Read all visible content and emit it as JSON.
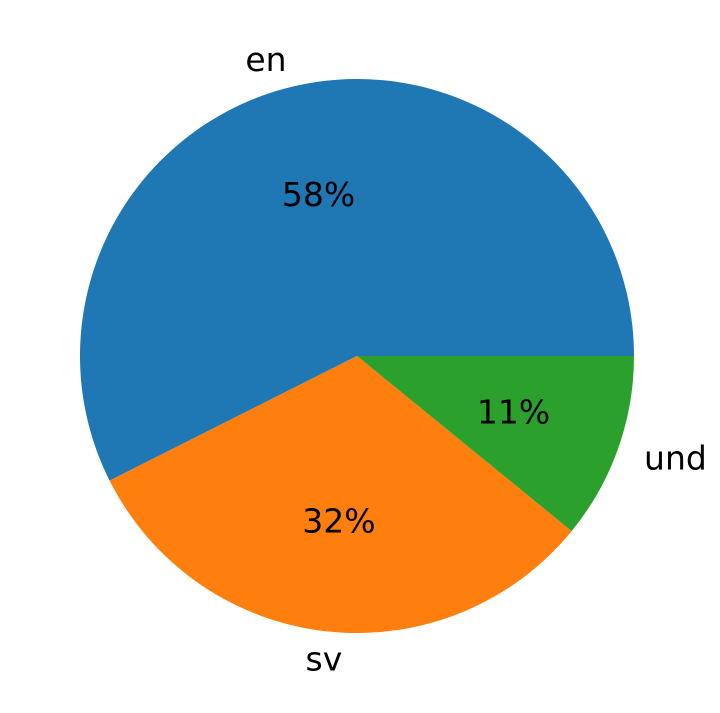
{
  "chart_data": {
    "type": "pie",
    "categories": [
      "en",
      "sv",
      "und"
    ],
    "values": [
      58,
      32,
      11
    ],
    "value_labels": [
      "58%",
      "32%",
      "11%"
    ],
    "colors": [
      "#1f77b4",
      "#ff7f0e",
      "#2ca02c"
    ],
    "start_angle_deg": 0,
    "direction": "counterclockwise",
    "legend": "none"
  }
}
